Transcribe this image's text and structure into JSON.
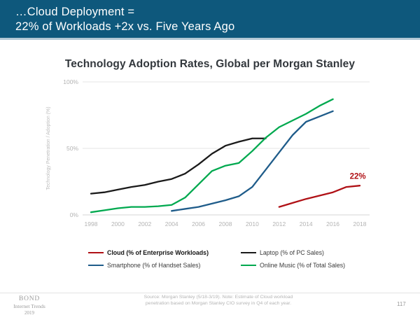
{
  "banner": {
    "line1": "…Cloud Deployment =",
    "line2": "22% of Workloads +2x vs. Five Years Ago"
  },
  "chart_data": {
    "type": "line",
    "title": "Technology Adoption Rates, Global per Morgan Stanley",
    "xlabel": "",
    "ylabel": "Technology Penetration / Adoption (%)",
    "xlim": [
      1997,
      2019
    ],
    "ylim": [
      0,
      100
    ],
    "grid": "horizontal",
    "legend_position": "bottom",
    "x_ticks": [
      1998,
      2000,
      2002,
      2004,
      2006,
      2008,
      2010,
      2012,
      2014,
      2016,
      2018
    ],
    "y_ticks": [
      {
        "label": "100%",
        "value": 100
      },
      {
        "label": "50%",
        "value": 50
      },
      {
        "label": "0%",
        "value": 0
      }
    ],
    "series": [
      {
        "name": "Cloud (% of Enterprise Workloads)",
        "color": "#b01116",
        "x": [
          2012,
          2013,
          2014,
          2015,
          2016,
          2017,
          2018
        ],
        "values": [
          6,
          9,
          12,
          14.5,
          17,
          21,
          22
        ]
      },
      {
        "name": "Laptop (% of PC Sales)",
        "color": "#1a1a1a",
        "x": [
          1998,
          1999,
          2000,
          2001,
          2002,
          2003,
          2004,
          2005,
          2006,
          2007,
          2008,
          2009,
          2010,
          2011
        ],
        "values": [
          16,
          17,
          19,
          21,
          22.5,
          25,
          27,
          31,
          38,
          46,
          52,
          55,
          57.5,
          57.5
        ]
      },
      {
        "name": "Smartphone (% of Handset Sales)",
        "color": "#1f5c8a",
        "x": [
          2004,
          2005,
          2006,
          2007,
          2008,
          2009,
          2010,
          2011,
          2012,
          2013,
          2014,
          2015,
          2016
        ],
        "values": [
          3,
          4.5,
          6,
          8.5,
          11,
          14,
          21,
          34,
          47,
          60,
          70,
          74,
          78
        ]
      },
      {
        "name": "Online Music (% of Total Sales)",
        "color": "#00a94f",
        "x": [
          1998,
          1999,
          2000,
          2001,
          2002,
          2003,
          2004,
          2005,
          2006,
          2007,
          2008,
          2009,
          2010,
          2011,
          2012,
          2013,
          2014,
          2015,
          2016
        ],
        "values": [
          2,
          3.5,
          5,
          6,
          6,
          6.5,
          7.5,
          13,
          23,
          33,
          37,
          39,
          48,
          58,
          66,
          71,
          76,
          82,
          87
        ]
      }
    ],
    "annotation": {
      "text": "22%",
      "x": 2017.85,
      "y": 27,
      "color": "#b01116"
    }
  },
  "footer": {
    "brand_line1": "BOND",
    "brand_line2": "Internet Trends",
    "brand_line3": "2019",
    "source_line1": "Source: Morgan Stanley (5/18-3/19).  Note: Estimate of Cloud workload",
    "source_line2": "penetration based on Morgan Stanley CIO survey in Q4 of each year.",
    "page_number": "117"
  }
}
